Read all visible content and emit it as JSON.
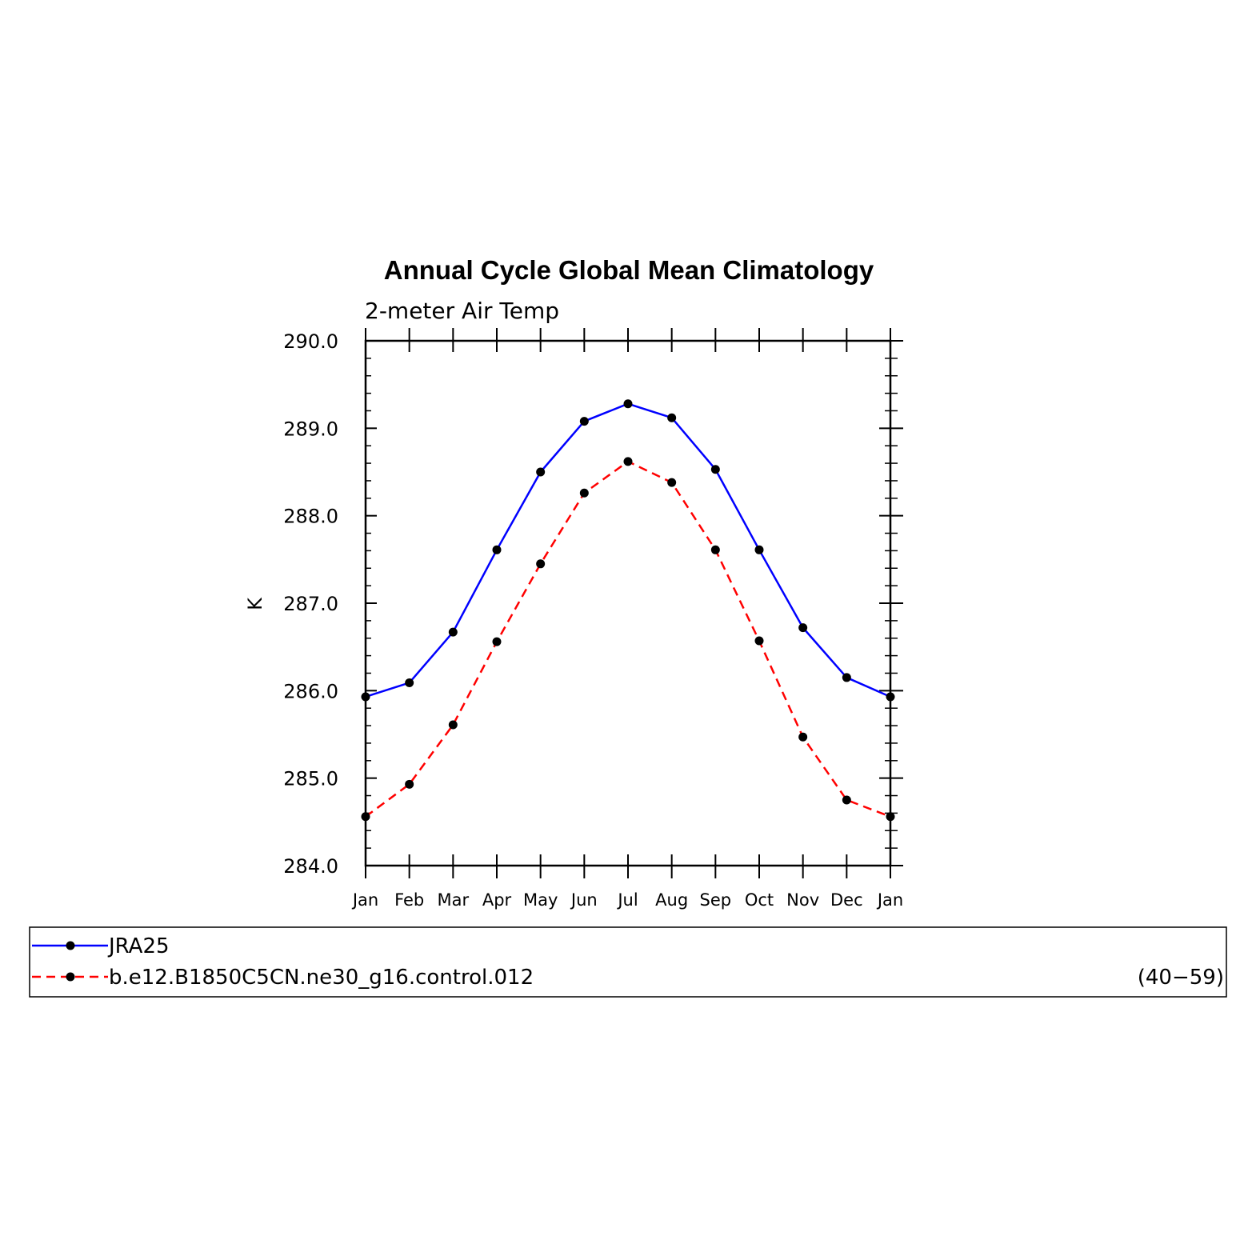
{
  "chart_data": {
    "type": "line",
    "title": "Annual Cycle Global Mean Climatology",
    "subtitle": "2-meter Air Temp",
    "ylabel": "K",
    "xlabel": "",
    "categories": [
      "Jan",
      "Feb",
      "Mar",
      "Apr",
      "May",
      "Jun",
      "Jul",
      "Aug",
      "Sep",
      "Oct",
      "Nov",
      "Dec",
      "Jan"
    ],
    "ylim": [
      284.0,
      290.0
    ],
    "yticks": [
      "284.0",
      "285.0",
      "286.0",
      "287.0",
      "288.0",
      "289.0",
      "290.0"
    ],
    "grid": false,
    "series": [
      {
        "name": "JRA25",
        "color": "#0000ff",
        "dash": "solid",
        "marker": "filled-circle",
        "values": [
          285.93,
          286.09,
          286.67,
          287.61,
          288.5,
          289.08,
          289.28,
          289.12,
          288.53,
          287.61,
          286.72,
          286.15,
          285.93
        ]
      },
      {
        "name": "b.e12.B1850C5CN.ne30_g16.control.012",
        "color": "#ff0000",
        "dash": "dashed",
        "marker": "filled-circle",
        "values": [
          284.56,
          284.93,
          285.61,
          286.56,
          287.45,
          288.26,
          288.62,
          288.38,
          287.61,
          286.57,
          285.47,
          284.75,
          284.56
        ]
      }
    ],
    "legend": {
      "placement": "bottom",
      "entries": [
        {
          "label": "JRA25",
          "note": ""
        },
        {
          "label": "b.e12.B1850C5CN.ne30_g16.control.012",
          "note": "(40−59)"
        }
      ]
    }
  }
}
